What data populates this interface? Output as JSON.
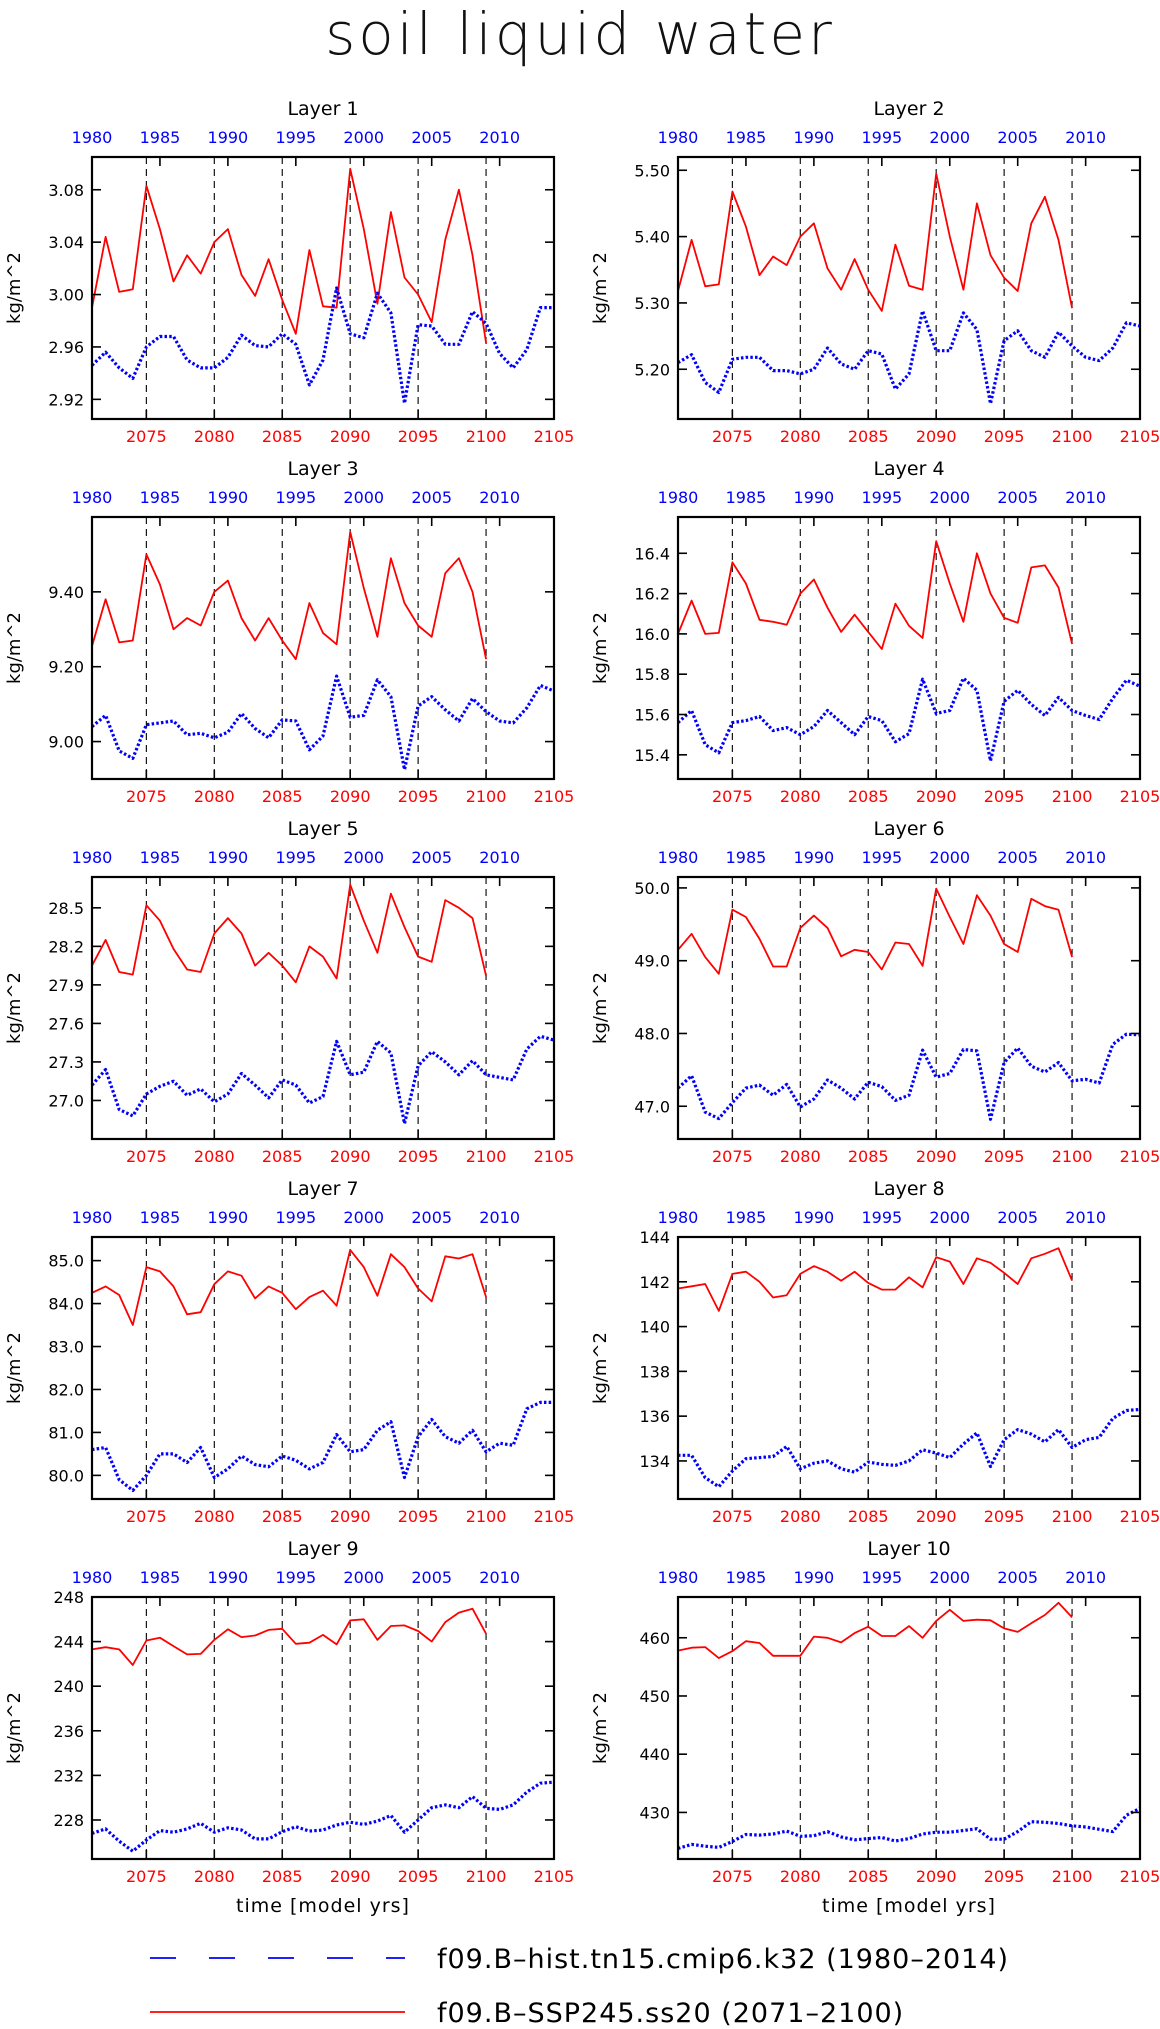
{
  "figure": {
    "title": "soil liquid water",
    "xlabel": "time [model yrs]",
    "legend": [
      {
        "label": "f09.B–hist.tn15.cmip6.k32 (1980–2014)",
        "color": "#0000ff",
        "style": "dashed"
      },
      {
        "label": "f09.B–SSP245.ss20 (2071–2100)",
        "color": "#ff0000",
        "style": "solid"
      }
    ]
  },
  "colors": {
    "hist": "#0000ff",
    "ssp": "#ff0000",
    "axis": "#000000"
  },
  "chart_data": [
    {
      "type": "line",
      "title": "Layer 1",
      "ylabel": "kg/m^2",
      "ylim": [
        2.905,
        3.105
      ],
      "yticks": [
        2.92,
        2.96,
        3.0,
        3.04,
        3.08
      ],
      "ytick_labels": [
        "2.92",
        "2.96",
        "3.00",
        "3.04",
        "3.08"
      ],
      "series": [
        {
          "name": "f09.B–SSP245.ss20 (2071–2100)",
          "x_start": 2071,
          "values": [
            2.99,
            3.044,
            3.002,
            3.004,
            3.083,
            3.05,
            3.01,
            3.03,
            3.016,
            3.04,
            3.05,
            3.015,
            2.999,
            3.027,
            2.996,
            2.97,
            3.034,
            2.991,
            2.99,
            3.096,
            3.05,
            2.993,
            3.063,
            3.013,
            3.0,
            2.979,
            3.042,
            3.08,
            3.03,
            2.963
          ]
        },
        {
          "name": "f09.B–hist.tn15.cmip6.k32 (1980–2014)",
          "x_start": 1980,
          "values": [
            2.946,
            2.956,
            2.944,
            2.936,
            2.96,
            2.968,
            2.968,
            2.95,
            2.944,
            2.944,
            2.952,
            2.969,
            2.961,
            2.96,
            2.97,
            2.962,
            2.931,
            2.95,
            3.005,
            2.97,
            2.967,
            3.001,
            2.986,
            2.917,
            2.977,
            2.976,
            2.962,
            2.962,
            2.987,
            2.978,
            2.955,
            2.944,
            2.958,
            2.99,
            2.99
          ]
        }
      ]
    },
    {
      "type": "line",
      "title": "Layer 2",
      "ylabel": "kg/m^2",
      "ylim": [
        5.125,
        5.52
      ],
      "yticks": [
        5.2,
        5.3,
        5.4,
        5.5
      ],
      "ytick_labels": [
        "5.20",
        "5.30",
        "5.40",
        "5.50"
      ],
      "series": [
        {
          "name": "f09.B–SSP245.ss20 (2071–2100)",
          "x_start": 2071,
          "values": [
            5.318,
            5.395,
            5.325,
            5.328,
            5.468,
            5.415,
            5.342,
            5.37,
            5.357,
            5.4,
            5.42,
            5.352,
            5.32,
            5.366,
            5.32,
            5.288,
            5.388,
            5.326,
            5.32,
            5.495,
            5.4,
            5.32,
            5.45,
            5.372,
            5.338,
            5.318,
            5.42,
            5.46,
            5.395,
            5.292
          ]
        },
        {
          "name": "f09.B–hist.tn15.cmip6.k32 (1980–2014)",
          "x_start": 1980,
          "values": [
            5.21,
            5.222,
            5.18,
            5.165,
            5.215,
            5.218,
            5.218,
            5.198,
            5.198,
            5.193,
            5.2,
            5.232,
            5.208,
            5.2,
            5.228,
            5.223,
            5.17,
            5.193,
            5.288,
            5.228,
            5.228,
            5.285,
            5.26,
            5.148,
            5.243,
            5.258,
            5.228,
            5.218,
            5.256,
            5.235,
            5.218,
            5.213,
            5.232,
            5.27,
            5.265
          ]
        }
      ]
    },
    {
      "type": "line",
      "title": "Layer 3",
      "ylabel": "kg/m^2",
      "ylim": [
        8.9,
        9.6
      ],
      "yticks": [
        9.0,
        9.2,
        9.4
      ],
      "ytick_labels": [
        "9.00",
        "9.20",
        "9.40"
      ],
      "series": [
        {
          "name": "f09.B–SSP245.ss20 (2071–2100)",
          "x_start": 2071,
          "values": [
            9.255,
            9.38,
            9.265,
            9.27,
            9.5,
            9.42,
            9.3,
            9.33,
            9.31,
            9.4,
            9.43,
            9.33,
            9.27,
            9.33,
            9.27,
            9.22,
            9.37,
            9.29,
            9.26,
            9.56,
            9.41,
            9.28,
            9.49,
            9.37,
            9.31,
            9.28,
            9.45,
            9.49,
            9.4,
            9.22
          ]
        },
        {
          "name": "f09.B–hist.tn15.cmip6.k32 (1980–2014)",
          "x_start": 1980,
          "values": [
            9.04,
            9.07,
            8.975,
            8.955,
            9.045,
            9.05,
            9.055,
            9.018,
            9.022,
            9.01,
            9.025,
            9.075,
            9.035,
            9.01,
            9.058,
            9.055,
            8.978,
            9.015,
            9.175,
            9.065,
            9.07,
            9.165,
            9.12,
            8.925,
            9.095,
            9.12,
            9.085,
            9.055,
            9.115,
            9.08,
            9.055,
            9.05,
            9.09,
            9.15,
            9.135
          ]
        }
      ]
    },
    {
      "type": "line",
      "title": "Layer 4",
      "ylabel": "kg/m^2",
      "ylim": [
        15.28,
        16.58
      ],
      "yticks": [
        15.4,
        15.6,
        15.8,
        16.0,
        16.2,
        16.4
      ],
      "ytick_labels": [
        "15.4",
        "15.6",
        "15.8",
        "16.0",
        "16.2",
        "16.4"
      ],
      "series": [
        {
          "name": "f09.B–SSP245.ss20 (2071–2100)",
          "x_start": 2071,
          "values": [
            16.0,
            16.165,
            16.0,
            16.005,
            16.355,
            16.25,
            16.07,
            16.06,
            16.045,
            16.2,
            16.27,
            16.13,
            16.01,
            16.095,
            16.01,
            15.925,
            16.15,
            16.04,
            15.98,
            16.46,
            16.25,
            16.06,
            16.4,
            16.2,
            16.08,
            16.055,
            16.33,
            16.34,
            16.23,
            15.95
          ]
        },
        {
          "name": "f09.B–hist.tn15.cmip6.k32 (1980–2014)",
          "x_start": 1980,
          "values": [
            15.56,
            15.62,
            15.45,
            15.41,
            15.56,
            15.57,
            15.59,
            15.52,
            15.535,
            15.5,
            15.54,
            15.62,
            15.56,
            15.5,
            15.59,
            15.57,
            15.465,
            15.505,
            15.775,
            15.605,
            15.62,
            15.78,
            15.72,
            15.37,
            15.665,
            15.72,
            15.65,
            15.595,
            15.685,
            15.62,
            15.595,
            15.575,
            15.68,
            15.77,
            15.74
          ]
        }
      ]
    },
    {
      "type": "line",
      "title": "Layer 5",
      "ylabel": "kg/m^2",
      "ylim": [
        26.7,
        28.74
      ],
      "yticks": [
        27.0,
        27.3,
        27.6,
        27.9,
        28.2,
        28.5
      ],
      "ytick_labels": [
        "27.0",
        "27.3",
        "27.6",
        "27.9",
        "28.2",
        "28.5"
      ],
      "series": [
        {
          "name": "f09.B–SSP245.ss20 (2071–2100)",
          "x_start": 2071,
          "values": [
            28.05,
            28.25,
            28.0,
            27.98,
            28.52,
            28.4,
            28.18,
            28.02,
            28.0,
            28.3,
            28.42,
            28.3,
            28.05,
            28.15,
            28.05,
            27.92,
            28.2,
            28.12,
            27.95,
            28.68,
            28.4,
            28.15,
            28.61,
            28.35,
            28.12,
            28.08,
            28.56,
            28.5,
            28.42,
            27.97
          ]
        },
        {
          "name": "f09.B–hist.tn15.cmip6.k32 (1980–2014)",
          "x_start": 1980,
          "values": [
            27.12,
            27.24,
            26.93,
            26.88,
            27.05,
            27.11,
            27.15,
            27.04,
            27.09,
            26.99,
            27.05,
            27.21,
            27.12,
            27.02,
            27.16,
            27.12,
            26.98,
            27.03,
            27.46,
            27.2,
            27.22,
            27.46,
            27.37,
            26.82,
            27.27,
            27.38,
            27.3,
            27.2,
            27.31,
            27.2,
            27.18,
            27.16,
            27.4,
            27.5,
            27.47
          ]
        }
      ]
    },
    {
      "type": "line",
      "title": "Layer 6",
      "ylabel": "kg/m^2",
      "ylim": [
        46.55,
        50.15
      ],
      "yticks": [
        47.0,
        48.0,
        49.0,
        50.0
      ],
      "ytick_labels": [
        "47.0",
        "48.0",
        "49.0",
        "50.0"
      ],
      "series": [
        {
          "name": "f09.B–SSP245.ss20 (2071–2100)",
          "x_start": 2071,
          "values": [
            49.15,
            49.37,
            49.05,
            48.82,
            49.7,
            49.6,
            49.3,
            48.92,
            48.92,
            49.45,
            49.62,
            49.45,
            49.06,
            49.15,
            49.12,
            48.88,
            49.25,
            49.23,
            48.93,
            49.99,
            49.6,
            49.23,
            49.9,
            49.62,
            49.23,
            49.12,
            49.85,
            49.75,
            49.7,
            49.05
          ]
        },
        {
          "name": "f09.B–hist.tn15.cmip6.k32 (1980–2014)",
          "x_start": 1980,
          "values": [
            47.25,
            47.42,
            46.92,
            46.83,
            47.05,
            47.25,
            47.29,
            47.15,
            47.3,
            46.99,
            47.1,
            47.36,
            47.25,
            47.1,
            47.33,
            47.27,
            47.08,
            47.15,
            47.77,
            47.4,
            47.45,
            47.78,
            47.76,
            46.82,
            47.6,
            47.8,
            47.55,
            47.47,
            47.6,
            47.35,
            47.37,
            47.32,
            47.85,
            47.99,
            47.98
          ]
        }
      ]
    },
    {
      "type": "line",
      "title": "Layer 7",
      "ylabel": "kg/m^2",
      "ylim": [
        79.45,
        85.55
      ],
      "yticks": [
        80.0,
        81.0,
        82.0,
        83.0,
        84.0,
        85.0
      ],
      "ytick_labels": [
        "80.0",
        "81.0",
        "82.0",
        "83.0",
        "84.0",
        "85.0"
      ],
      "series": [
        {
          "name": "f09.B–SSP245.ss20 (2071–2100)",
          "x_start": 2071,
          "values": [
            84.25,
            84.4,
            84.2,
            83.5,
            84.85,
            84.75,
            84.4,
            83.75,
            83.8,
            84.45,
            84.75,
            84.65,
            84.12,
            84.4,
            84.25,
            83.87,
            84.15,
            84.3,
            83.95,
            85.25,
            84.85,
            84.18,
            85.15,
            84.85,
            84.35,
            84.05,
            85.1,
            85.05,
            85.15,
            84.15
          ]
        },
        {
          "name": "f09.B–hist.tn15.cmip6.k32 (1980–2014)",
          "x_start": 1980,
          "values": [
            80.6,
            80.65,
            79.9,
            79.65,
            80.0,
            80.5,
            80.5,
            80.3,
            80.65,
            79.95,
            80.15,
            80.45,
            80.25,
            80.2,
            80.45,
            80.35,
            80.15,
            80.3,
            80.95,
            80.55,
            80.6,
            81.05,
            81.25,
            79.95,
            80.9,
            81.3,
            80.9,
            80.75,
            81.05,
            80.55,
            80.75,
            80.7,
            81.55,
            81.7,
            81.7
          ]
        }
      ]
    },
    {
      "type": "line",
      "title": "Layer 8",
      "ylabel": "kg/m^2",
      "ylim": [
        132.3,
        144.0
      ],
      "yticks": [
        134,
        136,
        138,
        140,
        142,
        144
      ],
      "ytick_labels": [
        "134",
        "136",
        "138",
        "140",
        "142",
        "144"
      ],
      "series": [
        {
          "name": "f09.B–SSP245.ss20 (2071–2100)",
          "x_start": 2071,
          "values": [
            141.7,
            141.8,
            141.9,
            140.7,
            142.35,
            142.45,
            142.0,
            141.3,
            141.4,
            142.35,
            142.7,
            142.45,
            142.05,
            142.45,
            141.95,
            141.65,
            141.65,
            142.2,
            141.75,
            143.1,
            142.9,
            141.9,
            143.05,
            142.85,
            142.4,
            141.9,
            143.05,
            143.25,
            143.5,
            142.05
          ]
        },
        {
          "name": "f09.B–hist.tn15.cmip6.k32 (1980–2014)",
          "x_start": 1980,
          "values": [
            134.25,
            134.25,
            133.25,
            132.85,
            133.55,
            134.1,
            134.15,
            134.2,
            134.65,
            133.65,
            133.9,
            134.0,
            133.65,
            133.5,
            133.95,
            133.85,
            133.8,
            134.0,
            134.5,
            134.35,
            134.15,
            134.75,
            135.25,
            133.75,
            134.95,
            135.4,
            135.2,
            134.85,
            135.4,
            134.6,
            134.95,
            135.05,
            135.9,
            136.25,
            136.3
          ]
        }
      ]
    },
    {
      "type": "line",
      "title": "Layer 9",
      "ylabel": "kg/m^2",
      "ylim": [
        224.5,
        248.0
      ],
      "yticks": [
        228,
        232,
        236,
        240,
        244,
        248
      ],
      "ytick_labels": [
        "228",
        "232",
        "236",
        "240",
        "244",
        "248"
      ],
      "series": [
        {
          "name": "f09.B–SSP245.ss20 (2071–2100)",
          "x_start": 2071,
          "values": [
            243.3,
            243.5,
            243.3,
            241.9,
            244.1,
            244.35,
            243.6,
            242.85,
            242.9,
            244.15,
            245.1,
            244.4,
            244.55,
            245.05,
            245.15,
            243.8,
            243.9,
            244.6,
            243.75,
            245.9,
            246.0,
            244.15,
            245.4,
            245.45,
            244.95,
            244.0,
            245.75,
            246.6,
            246.95,
            244.7
          ]
        },
        {
          "name": "f09.B–hist.tn15.cmip6.k32 (1980–2014)",
          "x_start": 1980,
          "values": [
            226.8,
            227.2,
            226.1,
            225.2,
            226.2,
            227.05,
            226.9,
            227.2,
            227.7,
            226.9,
            227.3,
            227.1,
            226.3,
            226.3,
            226.95,
            227.4,
            227.0,
            227.1,
            227.55,
            227.8,
            227.6,
            227.9,
            228.4,
            226.9,
            228.0,
            229.1,
            229.35,
            229.1,
            230.1,
            229.05,
            228.95,
            229.35,
            230.5,
            231.3,
            231.4
          ]
        }
      ]
    },
    {
      "type": "line",
      "title": "Layer 10",
      "ylabel": "kg/m^2",
      "ylim": [
        422.0,
        467.0
      ],
      "yticks": [
        430,
        440,
        450,
        460
      ],
      "ytick_labels": [
        "430",
        "440",
        "450",
        "460"
      ],
      "series": [
        {
          "name": "f09.B–SSP245.ss20 (2071–2100)",
          "x_start": 2071,
          "values": [
            457.8,
            458.3,
            458.4,
            456.5,
            457.7,
            459.4,
            459.1,
            456.9,
            456.9,
            456.9,
            460.2,
            460.0,
            459.2,
            460.8,
            461.9,
            460.3,
            460.3,
            462.0,
            460.0,
            462.9,
            464.8,
            462.9,
            463.1,
            463.0,
            461.6,
            461.0,
            462.5,
            463.9,
            466.0,
            463.5
          ]
        },
        {
          "name": "f09.B–hist.tn15.cmip6.k32 (1980–2014)",
          "x_start": 1980,
          "values": [
            423.8,
            424.5,
            424.2,
            424.0,
            425.0,
            426.2,
            426.1,
            426.3,
            426.8,
            425.9,
            426.0,
            426.7,
            425.8,
            425.3,
            425.5,
            425.7,
            425.1,
            425.5,
            426.3,
            426.6,
            426.6,
            426.9,
            427.2,
            425.4,
            425.4,
            426.7,
            428.4,
            428.3,
            428.1,
            427.7,
            427.5,
            427.1,
            426.7,
            429.5,
            430.7
          ]
        }
      ]
    }
  ],
  "axes": {
    "bottom_x": {
      "ticks": [
        2075,
        2080,
        2085,
        2090,
        2095,
        2100,
        2105
      ],
      "xlim": [
        2071,
        2105
      ],
      "color": "#ff0000"
    },
    "top_x": {
      "ticks": [
        1980,
        1985,
        1990,
        1995,
        2000,
        2005,
        2010
      ],
      "xlim": [
        1980,
        2014
      ],
      "color": "#0000ff"
    },
    "vertical_dashed_at": [
      2075,
      2080,
      2085,
      2090,
      2095,
      2100
    ]
  }
}
